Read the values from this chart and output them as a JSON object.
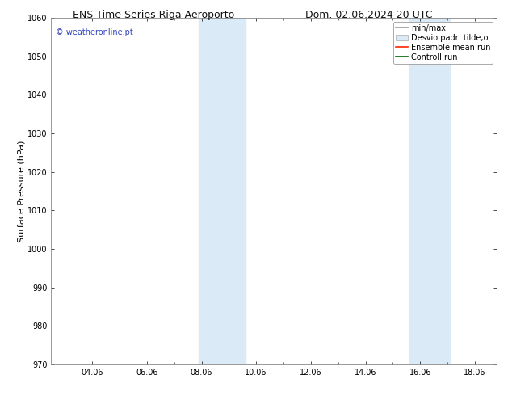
{
  "title_left": "ENS Time Series Riga Aeroporto",
  "title_right": "Dom. 02.06.2024 20 UTC",
  "ylabel": "Surface Pressure (hPa)",
  "watermark": "© weatheronline.pt",
  "watermark_color": "#3344bb",
  "ylim": [
    970,
    1060
  ],
  "yticks": [
    970,
    980,
    990,
    1000,
    1010,
    1020,
    1030,
    1040,
    1050,
    1060
  ],
  "xtick_labels": [
    "04.06",
    "06.06",
    "08.06",
    "10.06",
    "12.06",
    "14.06",
    "16.06",
    "18.06"
  ],
  "xtick_positions": [
    4,
    6,
    8,
    10,
    12,
    14,
    16,
    18
  ],
  "xlim_start": 2.5,
  "xlim_end": 18.8,
  "shaded_bands": [
    {
      "x_start": 7.9,
      "x_end": 9.6
    },
    {
      "x_start": 15.6,
      "x_end": 17.1
    }
  ],
  "shaded_color": "#daeaf7",
  "bg_color": "#ffffff",
  "legend_entries": [
    {
      "label": "min/max",
      "color": "#999999",
      "lw": 1.2
    },
    {
      "label": "Desvio padr  tilde;o",
      "color": "#ccddee",
      "lw": 5
    },
    {
      "label": "Ensemble mean run",
      "color": "#ff2200",
      "lw": 1.2
    },
    {
      "label": "Controll run",
      "color": "#006600",
      "lw": 1.2
    }
  ],
  "title_fontsize": 9,
  "ylabel_fontsize": 8,
  "tick_fontsize": 7,
  "watermark_fontsize": 7,
  "legend_fontsize": 7
}
